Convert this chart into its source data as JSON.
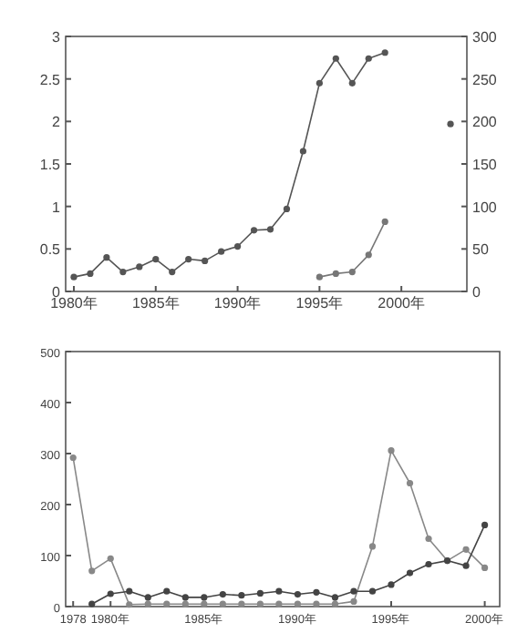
{
  "chart_data": [
    {
      "type": "line",
      "x": [
        1980,
        1981,
        1982,
        1983,
        1984,
        1985,
        1986,
        1987,
        1988,
        1989,
        1990,
        1991,
        1992,
        1993,
        1994,
        1995,
        1996,
        1997,
        1998,
        1999,
        2000,
        2001,
        2002,
        2003
      ],
      "xlim": [
        1979.5,
        2004
      ],
      "xticks": [
        {
          "value": 1980,
          "label": "1980年"
        },
        {
          "value": 1985,
          "label": "1985年"
        },
        {
          "value": 1990,
          "label": "1990年"
        },
        {
          "value": 1995,
          "label": "1995年"
        },
        {
          "value": 2000,
          "label": "2000年"
        }
      ],
      "ylim": [
        0,
        3
      ],
      "yticks": [
        0,
        0.5,
        1.0,
        1.5,
        2.0,
        2.5,
        3.0
      ],
      "y2lim": [
        0,
        300
      ],
      "y2ticks": [
        0,
        50,
        100,
        150,
        200,
        250,
        300
      ],
      "marker": "circle",
      "grid": false,
      "series": [
        {
          "color": "#555555",
          "axis": "y2",
          "values": [
            17,
            21,
            40,
            23,
            29,
            38,
            23,
            38,
            36,
            47,
            53,
            72,
            73,
            97,
            165,
            245,
            274,
            245,
            274,
            281,
            null,
            null,
            null,
            197
          ]
        },
        {
          "color": "#777777",
          "axis": "y",
          "x": [
            1995,
            1996,
            1997,
            1998,
            1999
          ],
          "values": [
            0.17,
            0.21,
            0.23,
            0.43,
            0.82
          ]
        }
      ]
    },
    {
      "type": "line",
      "x": [
        1978,
        1979,
        1980,
        1981,
        1982,
        1983,
        1984,
        1985,
        1986,
        1987,
        1988,
        1989,
        1990,
        1991,
        1992,
        1993,
        1994,
        1995,
        1996,
        1997,
        1998,
        1999,
        2000
      ],
      "xlim": [
        1977.6,
        2000.8
      ],
      "xticks": [
        1978,
        {
          "value": 1980,
          "label": "1980年"
        },
        {
          "value": 1985,
          "label": "1985年"
        },
        {
          "value": 1990,
          "label": "1990年"
        },
        {
          "value": 1995,
          "label": "1995年"
        },
        {
          "value": 2000,
          "label": "2000年"
        }
      ],
      "ylim": [
        0,
        500
      ],
      "yticks": [
        0,
        100,
        200,
        300,
        400,
        500
      ],
      "marker": "circle",
      "grid": false,
      "series": [
        {
          "color": "#888888",
          "values": [
            292,
            70,
            94,
            4,
            5,
            5,
            5,
            5,
            5,
            5,
            5,
            5,
            5,
            5,
            5,
            10,
            118,
            306,
            242,
            133,
            90,
            112,
            76
          ]
        },
        {
          "color": "#444444",
          "values": [
            null,
            5,
            25,
            30,
            18,
            30,
            18,
            18,
            24,
            22,
            26,
            30,
            24,
            28,
            18,
            30,
            30,
            43,
            66,
            83,
            90,
            80,
            160
          ]
        }
      ]
    }
  ]
}
